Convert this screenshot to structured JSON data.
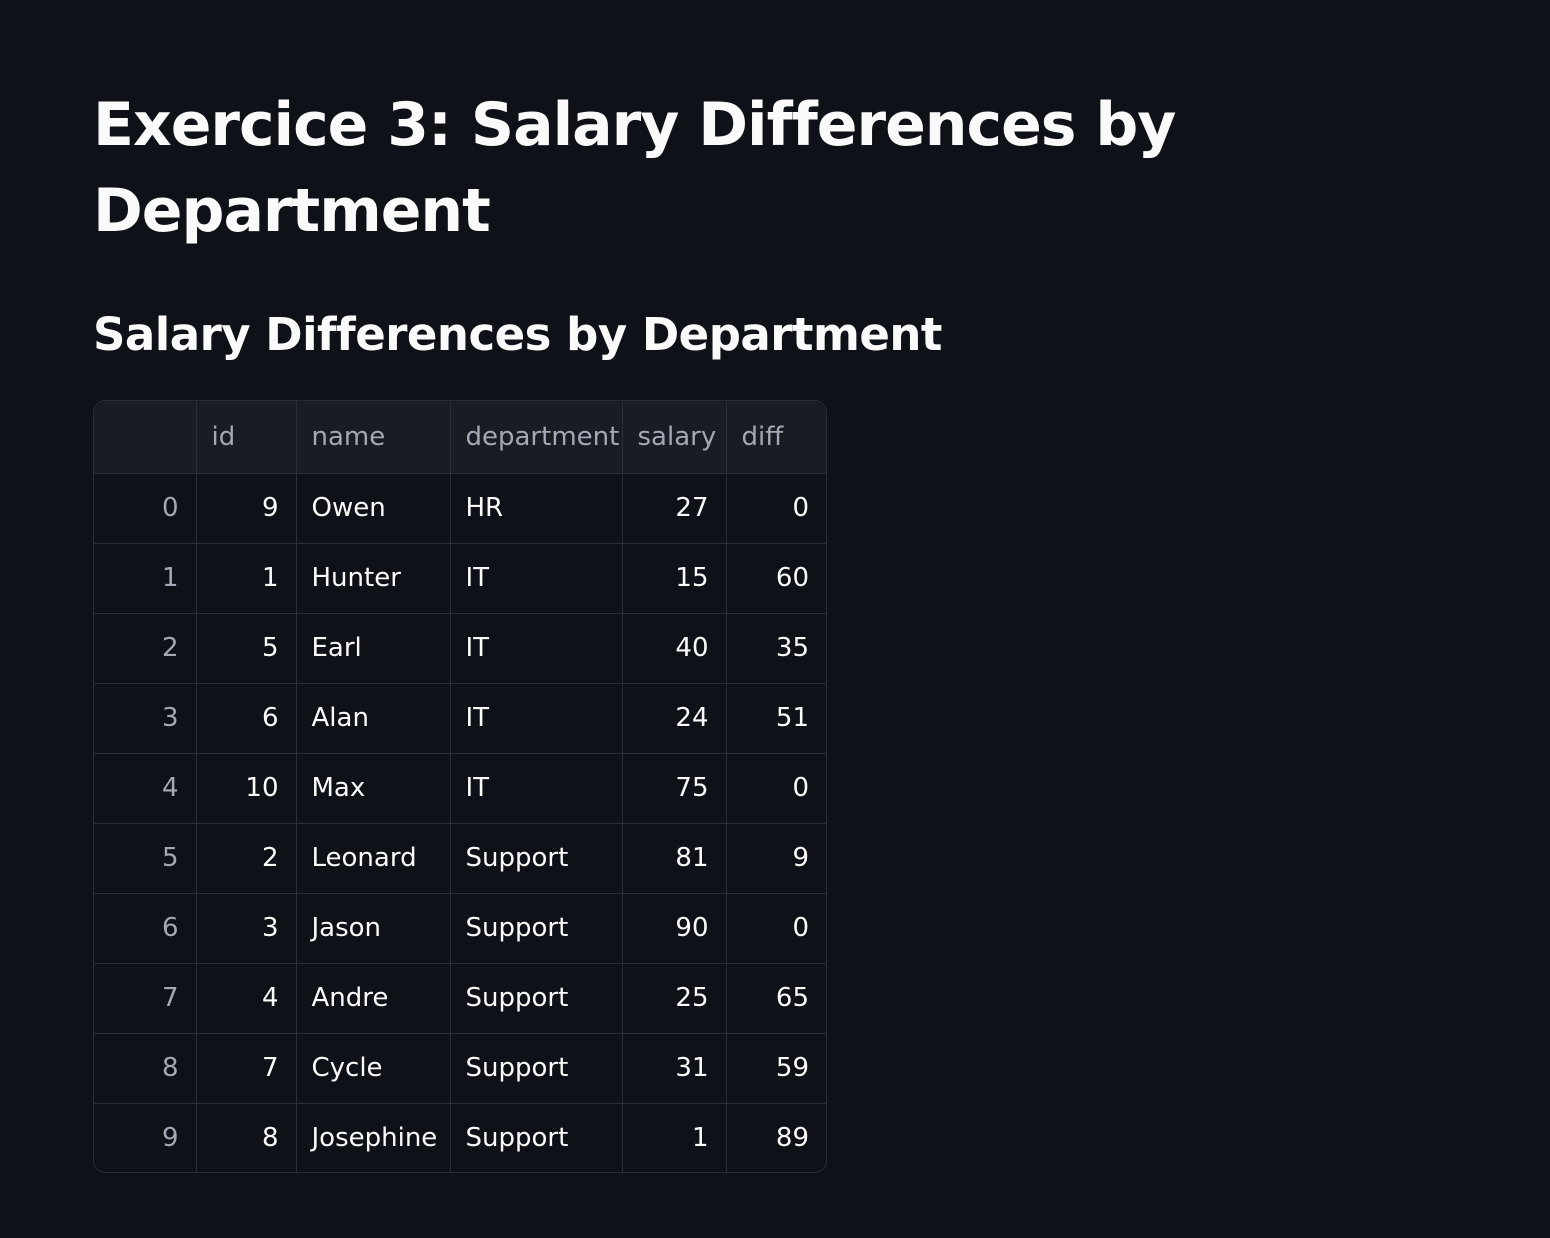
{
  "page": {
    "title": "Exercice 3: Salary Differences by Department",
    "subheader": "Salary Differences by Department"
  },
  "table": {
    "columns": [
      "",
      "id",
      "name",
      "department",
      "salary",
      "diff"
    ],
    "rows": [
      {
        "index": "0",
        "id": "9",
        "name": "Owen",
        "department": "HR",
        "salary": "27",
        "diff": "0"
      },
      {
        "index": "1",
        "id": "1",
        "name": "Hunter",
        "department": "IT",
        "salary": "15",
        "diff": "60"
      },
      {
        "index": "2",
        "id": "5",
        "name": "Earl",
        "department": "IT",
        "salary": "40",
        "diff": "35"
      },
      {
        "index": "3",
        "id": "6",
        "name": "Alan",
        "department": "IT",
        "salary": "24",
        "diff": "51"
      },
      {
        "index": "4",
        "id": "10",
        "name": "Max",
        "department": "IT",
        "salary": "75",
        "diff": "0"
      },
      {
        "index": "5",
        "id": "2",
        "name": "Leonard",
        "department": "Support",
        "salary": "81",
        "diff": "9"
      },
      {
        "index": "6",
        "id": "3",
        "name": "Jason",
        "department": "Support",
        "salary": "90",
        "diff": "0"
      },
      {
        "index": "7",
        "id": "4",
        "name": "Andre",
        "department": "Support",
        "salary": "25",
        "diff": "65"
      },
      {
        "index": "8",
        "id": "7",
        "name": "Cycle",
        "department": "Support",
        "salary": "31",
        "diff": "59"
      },
      {
        "index": "9",
        "id": "8",
        "name": "Josephine",
        "department": "Support",
        "salary": "1",
        "diff": "89"
      }
    ]
  },
  "colors": {
    "background": "#0e1117",
    "text": "#fafafa",
    "header_bg": "#1a1c24",
    "muted_text": "#a3a8b4",
    "border": "#2b2e35"
  }
}
